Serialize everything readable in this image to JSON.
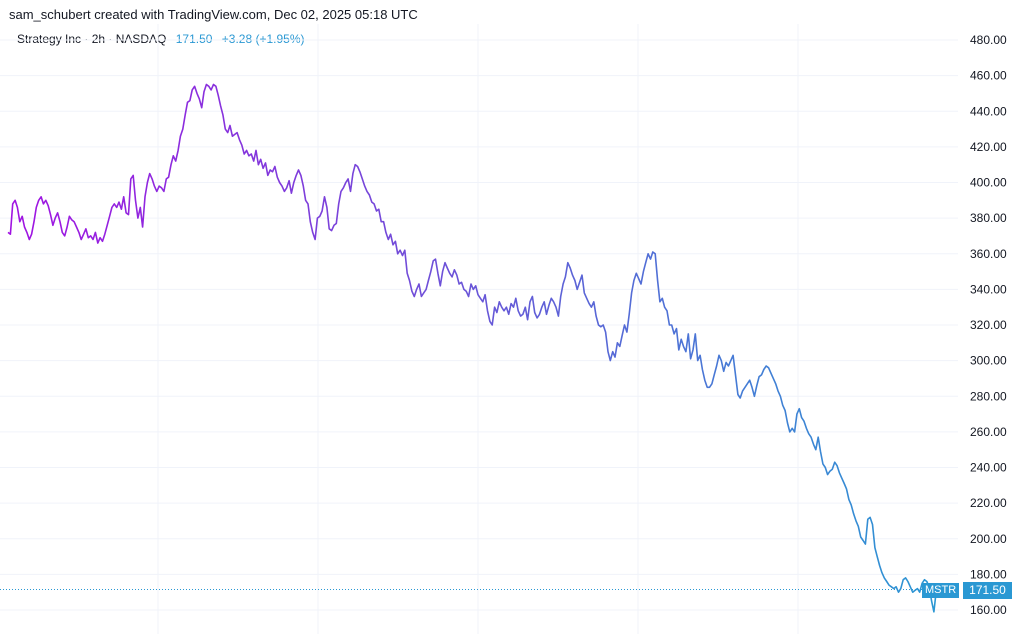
{
  "caption": "sam_schubert created with TradingView.com, Dec 02, 2025 05:18 UTC",
  "legend": {
    "symbol_line": "Strategy Inc · 2h · NASDAQ",
    "price": "171.50",
    "change": "+3.28 (+1.95%)"
  },
  "badges": {
    "symbol": "MSTR",
    "price": "171.50"
  },
  "colors": {
    "line_start": "#a113e2",
    "line_mid": "#6f4fd8",
    "line_end": "#2a98d3",
    "grid": "#f0f3fa",
    "price_line": "#2a98d3"
  },
  "chart_data": {
    "type": "line",
    "title": "Strategy Inc · 2h · NASDAQ",
    "xlabel": "",
    "ylabel": "",
    "ylim": [
      152,
      488
    ],
    "yticks": [
      "160.00",
      "180.00",
      "200.00",
      "220.00",
      "240.00",
      "260.00",
      "280.00",
      "300.00",
      "320.00",
      "340.00",
      "360.00",
      "380.00",
      "400.00",
      "420.00",
      "440.00",
      "460.00",
      "480.00"
    ],
    "last_value": 171.5,
    "series": [
      {
        "values": [
          372,
          371,
          388,
          390,
          386,
          378,
          381,
          375,
          372,
          368,
          371,
          378,
          386,
          390,
          392,
          388,
          390,
          387,
          382,
          376,
          380,
          383,
          378,
          372,
          370,
          375,
          381,
          379,
          378,
          375,
          372,
          368,
          371,
          374,
          369,
          370,
          368,
          372,
          366,
          369,
          367,
          371,
          376,
          381,
          386,
          388,
          386,
          389,
          385,
          392,
          383,
          382,
          402,
          404,
          390,
          380,
          386,
          375,
          392,
          400,
          405,
          402,
          398,
          395,
          398,
          397,
          395,
          402,
          403,
          410,
          415,
          412,
          418,
          426,
          430,
          438,
          445,
          446,
          452,
          454,
          450,
          447,
          442,
          451,
          455,
          454,
          452,
          455,
          454,
          449,
          443,
          438,
          430,
          428,
          432,
          426,
          427,
          428,
          424,
          421,
          416,
          418,
          415,
          416,
          412,
          418,
          410,
          413,
          408,
          411,
          404,
          407,
          406,
          409,
          403,
          400,
          398,
          395,
          397,
          401,
          394,
          400,
          404,
          407,
          404,
          398,
          390,
          388,
          378,
          372,
          368,
          380,
          381,
          384,
          392,
          386,
          374,
          373,
          376,
          377,
          388,
          395,
          397,
          400,
          402,
          395,
          405,
          410,
          409,
          406,
          402,
          398,
          395,
          393,
          389,
          388,
          384,
          385,
          378,
          378,
          372,
          368,
          371,
          365,
          367,
          360,
          362,
          359,
          362,
          349,
          345,
          339,
          336,
          340,
          343,
          336,
          338,
          340,
          345,
          350,
          356,
          357,
          349,
          342,
          350,
          355,
          352,
          349,
          347,
          351,
          348,
          343,
          344,
          340,
          339,
          336,
          343,
          340,
          342,
          337,
          335,
          333,
          337,
          328,
          322,
          320,
          330,
          327,
          333,
          330,
          328,
          330,
          326,
          332,
          330,
          335,
          328,
          325,
          326,
          330,
          323,
          333,
          336,
          327,
          324,
          326,
          330,
          333,
          326,
          331,
          335,
          333,
          330,
          325,
          336,
          343,
          347,
          355,
          352,
          348,
          345,
          340,
          344,
          348,
          338,
          335,
          332,
          330,
          333,
          325,
          320,
          319,
          320,
          316,
          305,
          300,
          305,
          302,
          310,
          308,
          314,
          320,
          316,
          326,
          338,
          345,
          349,
          346,
          343,
          350,
          355,
          360,
          357,
          361,
          360,
          345,
          333,
          335,
          330,
          328,
          320,
          320,
          315,
          318,
          306,
          312,
          308,
          305,
          315,
          301,
          306,
          315,
          300,
          303,
          295,
          289,
          285,
          285,
          287,
          292,
          297,
          303,
          300,
          294,
          299,
          297,
          300,
          303,
          292,
          281,
          279,
          283,
          285,
          287,
          289,
          285,
          280,
          286,
          291,
          292,
          295,
          297,
          296,
          293,
          290,
          287,
          283,
          280,
          275,
          272,
          265,
          260,
          262,
          260,
          270,
          273,
          268,
          266,
          262,
          259,
          257,
          253,
          250,
          257,
          249,
          242,
          240,
          236,
          238,
          239,
          243,
          241,
          237,
          234,
          231,
          228,
          222,
          219,
          214,
          210,
          207,
          201,
          199,
          197,
          211,
          212,
          208,
          195,
          190,
          185,
          181,
          178,
          176,
          174,
          173,
          172,
          173,
          170,
          172,
          177,
          178,
          176,
          173,
          170,
          171,
          172,
          170,
          175,
          177,
          176,
          173,
          165,
          159,
          171,
          172,
          171.5
        ]
      }
    ]
  }
}
